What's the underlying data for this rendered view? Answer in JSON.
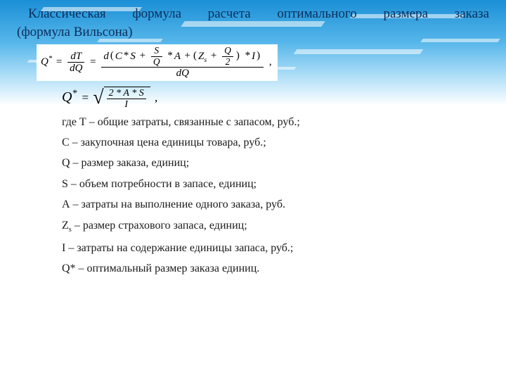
{
  "colors": {
    "title_color": "#0b2f5c",
    "sky_top": "#1b8fd6",
    "sky_mid": "#56b6ea",
    "sky_low": "#a9dcf7",
    "background": "#ffffff",
    "text": "#1a1a1a"
  },
  "title_line1": "Классическая формула расчета оптимального размера заказа",
  "title_line2": "(формула Вильсона)",
  "eq1": {
    "lhs_sym": "Q",
    "lhs_sup": "*",
    "mid_num": "dT",
    "mid_den": "dQ",
    "big_num_open": "d",
    "term_C": "C",
    "term_S": "S",
    "frac_SQ_num": "S",
    "frac_SQ_den": "Q",
    "term_A": "A",
    "term_Z": "Z",
    "term_Z_sub": "s",
    "frac_Q2_num": "Q",
    "frac_Q2_den": "2",
    "term_I": "I",
    "big_den": "dQ",
    "trail": ","
  },
  "eq2": {
    "lhs_sym": "Q",
    "lhs_sup": "*",
    "sqrt_num": "2 * A * S",
    "sqrt_den": "I",
    "trail": ","
  },
  "defs": {
    "d0": "где Т – общие затраты, связанные с запасом, руб.;",
    "d1": "С – закупочная цена единицы товара, руб.;",
    "d2": "Q – размер заказа, единиц;",
    "d3": "S – объем потребности в запасе, единиц;",
    "d4": "А – затраты на выполнение одного заказа, руб.",
    "d5_pre": "Z",
    "d5_sub": "s",
    "d5_post": " – размер страхового запаса, единиц;",
    "d6": "I – затраты на содержание единицы запаса, руб.;",
    "d7": "Q* – оптимальный размер заказа единиц."
  }
}
